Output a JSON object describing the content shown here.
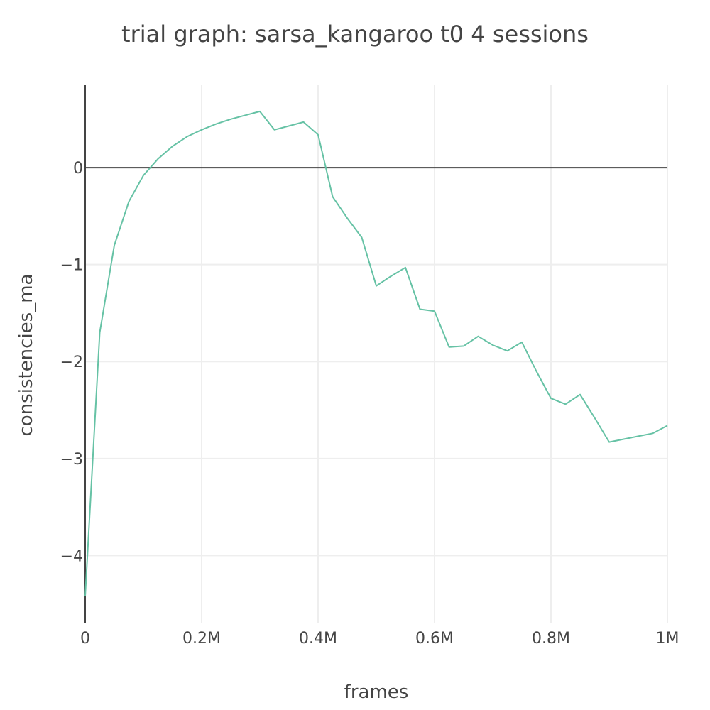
{
  "chart_data": {
    "type": "line",
    "title": "trial graph: sarsa_kangaroo t0 4 sessions",
    "xlabel": "frames",
    "ylabel": "consistencies_ma",
    "xlim": [
      0,
      1000000
    ],
    "ylim": [
      -4.7,
      0.85
    ],
    "grid": true,
    "x_ticks": [
      {
        "value": 0,
        "label": "0"
      },
      {
        "value": 200000,
        "label": "0.2M"
      },
      {
        "value": 400000,
        "label": "0.4M"
      },
      {
        "value": 600000,
        "label": "0.6M"
      },
      {
        "value": 800000,
        "label": "0.8M"
      },
      {
        "value": 1000000,
        "label": "1M"
      }
    ],
    "y_ticks": [
      {
        "value": 0,
        "label": "0"
      },
      {
        "value": -1,
        "label": "−1"
      },
      {
        "value": -2,
        "label": "−2"
      },
      {
        "value": -3,
        "label": "−3"
      },
      {
        "value": -4,
        "label": "−4"
      }
    ],
    "colors": {
      "series": "#66c2a5",
      "axis": "#444444",
      "grid": "#eeeeee"
    },
    "series": [
      {
        "x": [
          0,
          25000,
          50000,
          75000,
          100000,
          125000,
          150000,
          175000,
          200000,
          225000,
          250000,
          275000,
          300000,
          325000,
          350000,
          375000,
          400000,
          425000,
          450000,
          475000,
          500000,
          525000,
          550000,
          575000,
          600000,
          625000,
          650000,
          675000,
          700000,
          725000,
          750000,
          775000,
          800000,
          825000,
          850000,
          875000,
          900000,
          925000,
          950000,
          975000,
          1000000
        ],
        "y": [
          -4.42,
          -1.7,
          -0.8,
          -0.35,
          -0.08,
          0.09,
          0.22,
          0.32,
          0.39,
          0.45,
          0.5,
          0.54,
          0.58,
          0.39,
          0.43,
          0.47,
          0.34,
          -0.3,
          -0.52,
          -0.72,
          -1.22,
          -1.12,
          -1.03,
          -1.46,
          -1.48,
          -1.85,
          -1.84,
          -1.74,
          -1.83,
          -1.89,
          -1.8,
          -2.1,
          -2.38,
          -2.44,
          -2.34,
          -2.58,
          -2.83,
          -2.8,
          -2.77,
          -2.74,
          -2.66
        ]
      }
    ]
  }
}
